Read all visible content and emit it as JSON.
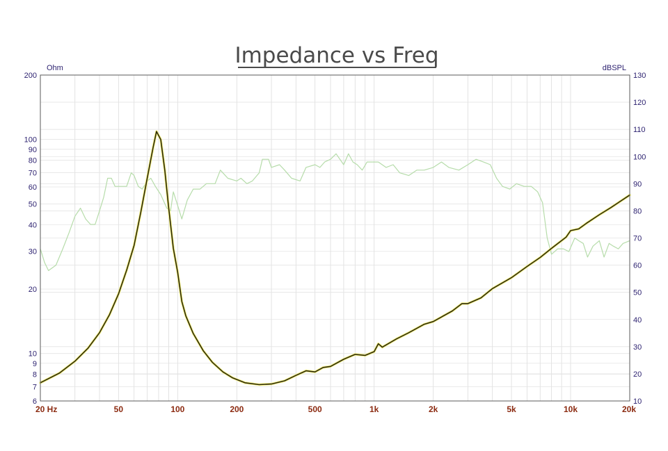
{
  "chart_data": {
    "type": "line",
    "title": "Impedance vs Freq",
    "x_scale": "log",
    "xlim": [
      20,
      20000
    ],
    "x_ticks": [
      {
        "value": 20,
        "label": "20 Hz"
      },
      {
        "value": 50,
        "label": "50"
      },
      {
        "value": 100,
        "label": "100"
      },
      {
        "value": 200,
        "label": "200"
      },
      {
        "value": 500,
        "label": "500"
      },
      {
        "value": 1000,
        "label": "1k"
      },
      {
        "value": 2000,
        "label": "2k"
      },
      {
        "value": 5000,
        "label": "5k"
      },
      {
        "value": 10000,
        "label": "10k"
      },
      {
        "value": 20000,
        "label": "20k"
      }
    ],
    "y_left": {
      "unit": "Ohm",
      "scale": "log",
      "lim": [
        6,
        200
      ],
      "ticks": [
        6,
        7,
        8,
        9,
        10,
        20,
        30,
        40,
        50,
        60,
        70,
        80,
        90,
        100,
        200
      ]
    },
    "y_right": {
      "unit": "dBSPL",
      "scale": "linear",
      "lim": [
        10,
        130
      ],
      "ticks": [
        10,
        20,
        30,
        40,
        50,
        60,
        70,
        80,
        90,
        100,
        110,
        120,
        130
      ]
    },
    "grid": true,
    "series": [
      {
        "axis": "left",
        "color": "#2e2a0c",
        "points": [
          [
            20,
            7.3
          ],
          [
            25,
            8.1
          ],
          [
            30,
            9.2
          ],
          [
            35,
            10.6
          ],
          [
            40,
            12.5
          ],
          [
            45,
            15.2
          ],
          [
            50,
            19.0
          ],
          [
            55,
            24.5
          ],
          [
            60,
            32.0
          ],
          [
            65,
            46.0
          ],
          [
            70,
            66.0
          ],
          [
            75,
            92.0
          ],
          [
            78,
            109.0
          ],
          [
            82,
            100.0
          ],
          [
            86,
            72.0
          ],
          [
            90,
            48.0
          ],
          [
            95,
            31.0
          ],
          [
            100,
            24.0
          ],
          [
            105,
            17.5
          ],
          [
            110,
            15.0
          ],
          [
            120,
            12.4
          ],
          [
            135,
            10.3
          ],
          [
            150,
            9.1
          ],
          [
            170,
            8.2
          ],
          [
            190,
            7.7
          ],
          [
            220,
            7.3
          ],
          [
            260,
            7.15
          ],
          [
            300,
            7.2
          ],
          [
            350,
            7.45
          ],
          [
            400,
            7.9
          ],
          [
            450,
            8.3
          ],
          [
            500,
            8.2
          ],
          [
            550,
            8.6
          ],
          [
            600,
            8.7
          ],
          [
            700,
            9.4
          ],
          [
            800,
            9.9
          ],
          [
            900,
            9.8
          ],
          [
            1000,
            10.2
          ],
          [
            1050,
            11.1
          ],
          [
            1100,
            10.7
          ],
          [
            1300,
            11.7
          ],
          [
            1500,
            12.5
          ],
          [
            1800,
            13.7
          ],
          [
            2000,
            14.1
          ],
          [
            2500,
            15.8
          ],
          [
            2800,
            17.1
          ],
          [
            3000,
            17.1
          ],
          [
            3500,
            18.2
          ],
          [
            4000,
            20.1
          ],
          [
            5000,
            22.6
          ],
          [
            6000,
            25.5
          ],
          [
            7000,
            28.1
          ],
          [
            8000,
            31.0
          ],
          [
            9500,
            35.0
          ],
          [
            10000,
            37.5
          ],
          [
            11000,
            38.2
          ],
          [
            12000,
            40.5
          ],
          [
            14000,
            44.5
          ],
          [
            16000,
            48.0
          ],
          [
            20000,
            55.0
          ]
        ]
      },
      {
        "axis": "right",
        "color": "#b6dcaa",
        "points": [
          [
            20,
            66
          ],
          [
            21,
            61
          ],
          [
            22,
            58
          ],
          [
            24,
            60
          ],
          [
            26,
            66
          ],
          [
            28,
            72
          ],
          [
            30,
            78
          ],
          [
            32,
            81
          ],
          [
            34,
            77
          ],
          [
            36,
            75
          ],
          [
            38,
            75
          ],
          [
            40,
            80
          ],
          [
            42,
            85
          ],
          [
            44,
            92
          ],
          [
            46,
            92
          ],
          [
            48,
            89
          ],
          [
            52,
            89
          ],
          [
            55,
            89
          ],
          [
            58,
            94
          ],
          [
            60,
            93
          ],
          [
            63,
            89
          ],
          [
            66,
            88
          ],
          [
            70,
            91
          ],
          [
            73,
            92
          ],
          [
            77,
            89
          ],
          [
            82,
            86
          ],
          [
            88,
            81
          ],
          [
            92,
            80
          ],
          [
            95,
            87
          ],
          [
            100,
            82
          ],
          [
            105,
            77
          ],
          [
            112,
            84
          ],
          [
            120,
            88
          ],
          [
            130,
            88
          ],
          [
            140,
            90
          ],
          [
            155,
            90
          ],
          [
            165,
            95
          ],
          [
            180,
            92
          ],
          [
            200,
            91
          ],
          [
            210,
            92
          ],
          [
            225,
            90
          ],
          [
            240,
            91
          ],
          [
            260,
            94
          ],
          [
            270,
            99
          ],
          [
            290,
            99
          ],
          [
            300,
            96
          ],
          [
            330,
            97
          ],
          [
            350,
            95
          ],
          [
            380,
            92
          ],
          [
            420,
            91
          ],
          [
            450,
            96
          ],
          [
            500,
            97
          ],
          [
            530,
            96
          ],
          [
            560,
            98
          ],
          [
            600,
            99
          ],
          [
            640,
            101
          ],
          [
            700,
            97
          ],
          [
            740,
            101
          ],
          [
            780,
            98
          ],
          [
            820,
            97
          ],
          [
            870,
            95
          ],
          [
            920,
            98
          ],
          [
            980,
            98
          ],
          [
            1050,
            98
          ],
          [
            1150,
            96
          ],
          [
            1250,
            97
          ],
          [
            1350,
            94
          ],
          [
            1500,
            93
          ],
          [
            1650,
            95
          ],
          [
            1800,
            95
          ],
          [
            2000,
            96
          ],
          [
            2200,
            98
          ],
          [
            2400,
            96
          ],
          [
            2700,
            95
          ],
          [
            3000,
            97
          ],
          [
            3300,
            99
          ],
          [
            3600,
            98
          ],
          [
            3900,
            97
          ],
          [
            4200,
            92
          ],
          [
            4500,
            89
          ],
          [
            4900,
            88
          ],
          [
            5300,
            90
          ],
          [
            5800,
            89
          ],
          [
            6300,
            89
          ],
          [
            6800,
            87
          ],
          [
            7200,
            83
          ],
          [
            7600,
            70
          ],
          [
            8000,
            64
          ],
          [
            8600,
            66
          ],
          [
            9200,
            66
          ],
          [
            9800,
            65
          ],
          [
            10500,
            70
          ],
          [
            11000,
            69
          ],
          [
            11600,
            68
          ],
          [
            12200,
            63
          ],
          [
            13000,
            67
          ],
          [
            14000,
            69
          ],
          [
            14800,
            63
          ],
          [
            15700,
            68
          ],
          [
            16500,
            67
          ],
          [
            17500,
            66
          ],
          [
            18500,
            68
          ],
          [
            20000,
            69
          ]
        ]
      }
    ]
  }
}
